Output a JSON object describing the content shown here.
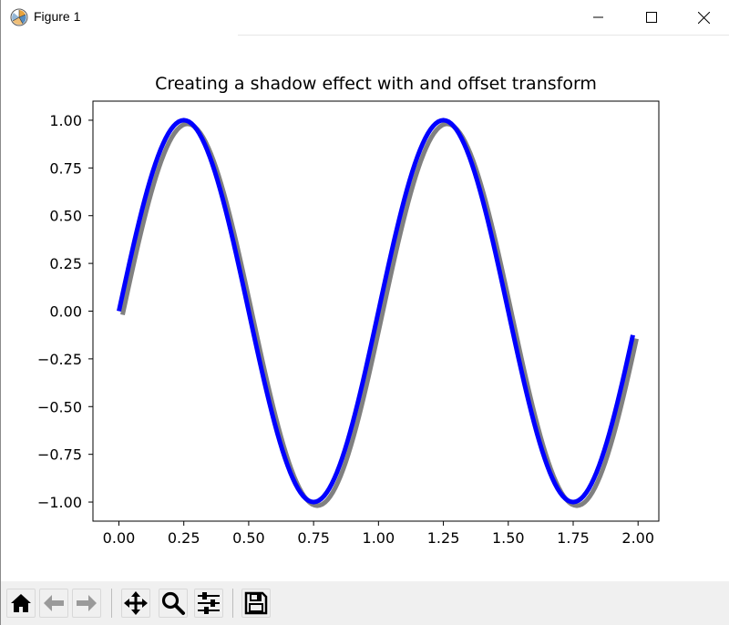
{
  "window": {
    "title": "Figure 1"
  },
  "colors": {
    "line": "#0000ff",
    "shadow": "#808080",
    "toolbar_bg": "#f0f0f0"
  },
  "chart_data": {
    "type": "line",
    "title": "Creating a shadow effect with and offset transform",
    "xlabel": "",
    "ylabel": "",
    "xlim": [
      -0.1,
      2.08
    ],
    "ylim": [
      -1.1,
      1.1
    ],
    "xticks": [
      0.0,
      0.25,
      0.5,
      0.75,
      1.0,
      1.25,
      1.5,
      1.75,
      2.0
    ],
    "xtick_labels": [
      "0.00",
      "0.25",
      "0.50",
      "0.75",
      "1.00",
      "1.25",
      "1.50",
      "1.75",
      "2.00"
    ],
    "yticks": [
      1.0,
      0.75,
      0.5,
      0.25,
      0.0,
      -0.25,
      -0.5,
      -0.75,
      -1.0
    ],
    "ytick_labels": [
      "1.00",
      "0.75",
      "0.50",
      "0.25",
      "0.00",
      "−0.25",
      "−0.50",
      "−0.75",
      "−1.00"
    ],
    "grid": false,
    "series": [
      {
        "x_start": 0.0,
        "x_end": 1.98,
        "x_step": 0.01,
        "function": "sin(2*pi*x)",
        "color": "#0000ff"
      },
      {
        "x_start": 0.0,
        "x_end": 1.98,
        "x_step": 0.01,
        "function": "sin(2*pi*x)",
        "color": "#808080"
      }
    ]
  },
  "toolbar": {
    "buttons": [
      {
        "icon": "home-icon",
        "name": "home-button"
      },
      {
        "icon": "arrow-left-icon",
        "name": "back-button"
      },
      {
        "icon": "arrow-right-icon",
        "name": "forward-button"
      },
      {
        "icon": "move-icon",
        "name": "pan-button"
      },
      {
        "icon": "magnifier-icon",
        "name": "zoom-button"
      },
      {
        "icon": "sliders-icon",
        "name": "configure-subplots-button"
      },
      {
        "icon": "floppy-disk-icon",
        "name": "save-button"
      }
    ]
  }
}
